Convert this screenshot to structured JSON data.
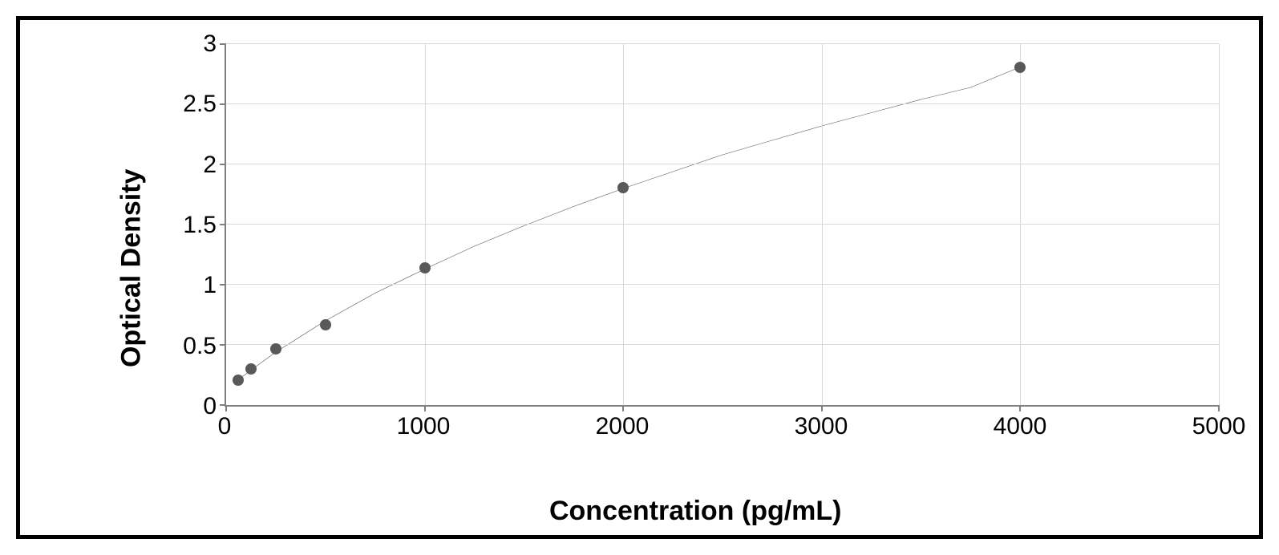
{
  "chart": {
    "type": "scatter-with-curve",
    "ylabel": "Optical Density",
    "xlabel": "Concentration (pg/mL)",
    "label_fontsize": 34,
    "label_fontweight": "bold",
    "tick_fontsize": 30,
    "xlim": [
      0,
      5000
    ],
    "ylim": [
      0,
      3
    ],
    "xticks": [
      0,
      1000,
      2000,
      3000,
      4000,
      5000
    ],
    "yticks": [
      0,
      0.5,
      1,
      1.5,
      2,
      2.5,
      3
    ],
    "xtick_labels": [
      "0",
      "1000",
      "2000",
      "3000",
      "4000",
      "5000"
    ],
    "ytick_labels": [
      "0",
      "0.5",
      "1",
      "1.5",
      "2",
      "2.5",
      "3"
    ],
    "grid_color": "#d9d9d9",
    "axis_color": "#808080",
    "background_color": "#ffffff",
    "border_color": "#000000",
    "border_width": 5,
    "points": [
      {
        "x": 62.5,
        "y": 0.21
      },
      {
        "x": 125,
        "y": 0.3
      },
      {
        "x": 250,
        "y": 0.47
      },
      {
        "x": 500,
        "y": 0.67
      },
      {
        "x": 1000,
        "y": 1.14
      },
      {
        "x": 2000,
        "y": 1.81
      },
      {
        "x": 4000,
        "y": 2.81
      }
    ],
    "point_color": "#595959",
    "point_radius": 7,
    "line_color": "#595959",
    "line_width": 2.5,
    "curve": [
      {
        "x": 62.5,
        "y": 0.21
      },
      {
        "x": 125,
        "y": 0.29
      },
      {
        "x": 250,
        "y": 0.44
      },
      {
        "x": 500,
        "y": 0.7
      },
      {
        "x": 750,
        "y": 0.93
      },
      {
        "x": 1000,
        "y": 1.13
      },
      {
        "x": 1250,
        "y": 1.32
      },
      {
        "x": 1500,
        "y": 1.49
      },
      {
        "x": 1750,
        "y": 1.65
      },
      {
        "x": 2000,
        "y": 1.8
      },
      {
        "x": 2250,
        "y": 1.94
      },
      {
        "x": 2500,
        "y": 2.08
      },
      {
        "x": 2750,
        "y": 2.2
      },
      {
        "x": 3000,
        "y": 2.32
      },
      {
        "x": 3250,
        "y": 2.43
      },
      {
        "x": 3500,
        "y": 2.54
      },
      {
        "x": 3750,
        "y": 2.64
      },
      {
        "x": 4000,
        "y": 2.81
      }
    ]
  }
}
